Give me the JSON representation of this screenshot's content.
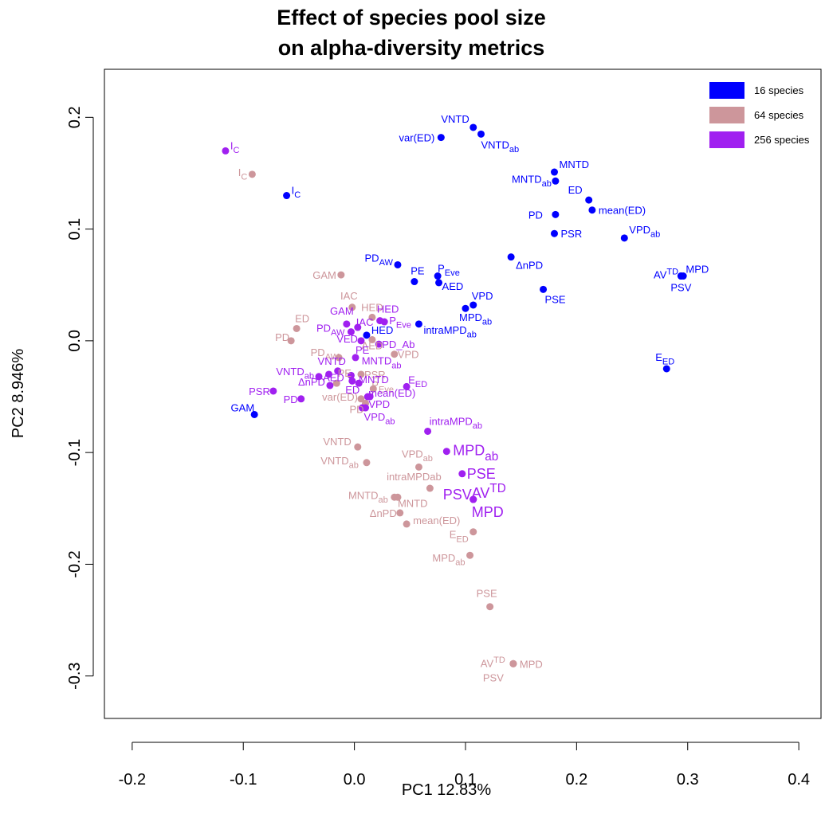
{
  "chart_data": {
    "type": "scatter",
    "title": [
      "Effect of species pool size",
      "on alpha-diversity metrics"
    ],
    "xlabel": "PC1 12.83%",
    "ylabel": "PC2 8.946%",
    "xlim": [
      -0.225,
      0.42
    ],
    "ylim": [
      -0.338,
      0.243
    ],
    "xticks": [
      -0.2,
      -0.1,
      0.0,
      0.1,
      0.2,
      0.3,
      0.4
    ],
    "xtick_labels": [
      "-0.2",
      "-0.1",
      "0.0",
      "0.1",
      "0.2",
      "0.3",
      "0.4"
    ],
    "yticks": [
      -0.3,
      -0.2,
      -0.1,
      0.0,
      0.1,
      0.2
    ],
    "ytick_labels": [
      "-0.3",
      "-0.2",
      "-0.1",
      "0.0",
      "0.1",
      "0.2"
    ],
    "grid": false,
    "legend_position": "top-right",
    "legend": [
      {
        "name": "16 species",
        "color": "#0000ff"
      },
      {
        "name": "64 species",
        "color": "#cd969b"
      },
      {
        "name": "256 species",
        "color": "#a020f0"
      }
    ],
    "series": [
      {
        "name": "16 species",
        "color": "#0000ff",
        "points": [
          {
            "x": 0.107,
            "y": 0.191,
            "label": "VNTD",
            "anchor": "end",
            "dx": -5,
            "dy": -6
          },
          {
            "x": 0.114,
            "y": 0.185,
            "label": "VNTD",
            "sub": "ab",
            "anchor": "start",
            "dx": 0,
            "dy": 18
          },
          {
            "x": 0.078,
            "y": 0.182,
            "label": "var(ED)",
            "anchor": "end",
            "dx": -8,
            "dy": 5
          },
          {
            "x": 0.18,
            "y": 0.151,
            "label": "MNTD",
            "anchor": "start",
            "dx": 6,
            "dy": -5
          },
          {
            "x": 0.181,
            "y": 0.143,
            "label": "MNTD",
            "sub": "ab",
            "anchor": "end",
            "dx": -5,
            "dy": 2
          },
          {
            "x": 0.211,
            "y": 0.126,
            "label": "ED",
            "anchor": "end",
            "dx": -8,
            "dy": -8
          },
          {
            "x": 0.214,
            "y": 0.117,
            "label": "mean(ED)",
            "anchor": "start",
            "dx": 8,
            "dy": 5
          },
          {
            "x": 0.181,
            "y": 0.113,
            "label": "PD",
            "anchor": "end",
            "dx": -16,
            "dy": 5
          },
          {
            "x": 0.18,
            "y": 0.096,
            "label": "PSR",
            "anchor": "start",
            "dx": 8,
            "dy": 5
          },
          {
            "x": 0.243,
            "y": 0.092,
            "label": "VPD",
            "sub": "ab",
            "anchor": "start",
            "dx": 6,
            "dy": -6
          },
          {
            "x": -0.061,
            "y": 0.13,
            "label": "I",
            "sub": "C",
            "anchor": "start",
            "dx": 6,
            "dy": -2
          },
          {
            "x": 0.039,
            "y": 0.068,
            "label": "PD",
            "sub": "AW",
            "anchor": "end",
            "dx": -6,
            "dy": -4
          },
          {
            "x": 0.054,
            "y": 0.053,
            "label": "PE",
            "anchor": "middle",
            "dx": 4,
            "dy": -9
          },
          {
            "x": 0.075,
            "y": 0.058,
            "label": "P",
            "sub": "Eve",
            "anchor": "start",
            "dx": 0,
            "dy": -5
          },
          {
            "x": 0.076,
            "y": 0.052,
            "label": "AED",
            "anchor": "start",
            "dx": 4,
            "dy": 9
          },
          {
            "x": 0.141,
            "y": 0.075,
            "label": "ΔnPD",
            "anchor": "start",
            "dx": 6,
            "dy": 15
          },
          {
            "x": 0.296,
            "y": 0.058,
            "label": "AV",
            "sup": "TD",
            "anchor": "end",
            "dx": -6,
            "dy": 3
          },
          {
            "x": 0.294,
            "y": 0.058,
            "label": "MPD",
            "anchor": "start",
            "dx": 6,
            "dy": -4
          },
          {
            "x": 0.294,
            "y": 0.058,
            "label": "PSV",
            "anchor": "middle",
            "dx": 0,
            "dy": 19
          },
          {
            "x": 0.17,
            "y": 0.046,
            "label": "PSE",
            "anchor": "start",
            "dx": 2,
            "dy": 17
          },
          {
            "x": 0.107,
            "y": 0.032,
            "label": "VPD",
            "anchor": "start",
            "dx": -2,
            "dy": -7
          },
          {
            "x": 0.1,
            "y": 0.029,
            "label": "MPD",
            "sub": "ab",
            "anchor": "start",
            "dx": -8,
            "dy": 16
          },
          {
            "x": 0.058,
            "y": 0.015,
            "label": "intraMPD",
            "sub": "ab",
            "anchor": "start",
            "dx": 6,
            "dy": 12
          },
          {
            "x": 0.011,
            "y": 0.005,
            "label": "HED",
            "anchor": "start",
            "dx": 6,
            "dy": -2
          },
          {
            "x": 0.281,
            "y": -0.025,
            "label": "E",
            "sub": "ED",
            "anchor": "end",
            "dx": 10,
            "dy": -10
          },
          {
            "x": -0.09,
            "y": -0.066,
            "label": "GAM",
            "anchor": "end",
            "dx": 0,
            "dy": -4
          }
        ]
      },
      {
        "name": "64 species",
        "color": "#cd969b",
        "points": [
          {
            "x": -0.092,
            "y": 0.149,
            "label": "I",
            "sub": "C",
            "anchor": "end",
            "dx": -6,
            "dy": 2
          },
          {
            "x": -0.012,
            "y": 0.059,
            "label": "GAM",
            "anchor": "end",
            "dx": -6,
            "dy": 5
          },
          {
            "x": -0.002,
            "y": 0.03,
            "label": "IAC",
            "anchor": "middle",
            "dx": -4,
            "dy": -10
          },
          {
            "x": -0.052,
            "y": 0.011,
            "label": "ED",
            "anchor": "start",
            "dx": -2,
            "dy": -8
          },
          {
            "x": -0.057,
            "y": 0.0,
            "label": "PD",
            "anchor": "end",
            "dx": -2,
            "dy": 0
          },
          {
            "x": 0.016,
            "y": 0.021,
            "label": "HED",
            "anchor": "middle",
            "dx": 0,
            "dy": -8
          },
          {
            "x": 0.016,
            "y": 0.001,
            "label": "AED",
            "anchor": "middle",
            "dx": 0,
            "dy": 12
          },
          {
            "x": 0.036,
            "y": -0.012,
            "label": "VPD",
            "anchor": "start",
            "dx": 4,
            "dy": 5
          },
          {
            "x": -0.014,
            "y": -0.015,
            "label": "PD",
            "sub": "AW",
            "anchor": "end",
            "dx": 0,
            "dy": -2
          },
          {
            "x": 0.006,
            "y": -0.03,
            "label": "PSR",
            "anchor": "start",
            "dx": 4,
            "dy": 5
          },
          {
            "x": 0.017,
            "y": -0.043,
            "label": "P",
            "sub": "Eve",
            "anchor": "start",
            "dx": -2,
            "dy": 0
          },
          {
            "x": 0.006,
            "y": -0.052,
            "label": "var(ED)",
            "anchor": "end",
            "dx": -4,
            "dy": 2
          },
          {
            "x": -0.016,
            "y": -0.038,
            "label": "PE",
            "anchor": "middle",
            "dx": 10,
            "dy": -8
          },
          {
            "x": 0.01,
            "y": -0.056,
            "label": "PD",
            "anchor": "end",
            "dx": -2,
            "dy": 12
          },
          {
            "x": 0.003,
            "y": -0.095,
            "label": "VNTD",
            "anchor": "end",
            "dx": -8,
            "dy": -2
          },
          {
            "x": 0.011,
            "y": -0.109,
            "label": "VNTD",
            "sub": "ab",
            "anchor": "end",
            "dx": -10,
            "dy": 2
          },
          {
            "x": 0.058,
            "y": -0.113,
            "label": "VPD",
            "sub": "ab",
            "anchor": "middle",
            "dx": -2,
            "dy": -12
          },
          {
            "x": 0.068,
            "y": -0.132,
            "label": "intraMPDab",
            "anchor": "middle",
            "dx": -20,
            "dy": -10
          },
          {
            "x": 0.036,
            "y": -0.14,
            "label": "MNTD",
            "sub": "ab",
            "anchor": "end",
            "dx": -8,
            "dy": 2
          },
          {
            "x": 0.039,
            "y": -0.14,
            "label": "MNTD",
            "anchor": "start",
            "dx": 0,
            "dy": 12
          },
          {
            "x": 0.041,
            "y": -0.154,
            "label": "ΔnPD",
            "anchor": "end",
            "dx": -4,
            "dy": 5
          },
          {
            "x": 0.047,
            "y": -0.164,
            "label": "mean(ED)",
            "anchor": "start",
            "dx": 8,
            "dy": 0
          },
          {
            "x": 0.107,
            "y": -0.171,
            "label": "E",
            "sub": "ED",
            "anchor": "end",
            "dx": -6,
            "dy": 8
          },
          {
            "x": 0.104,
            "y": -0.192,
            "label": "MPD",
            "sub": "ab",
            "anchor": "end",
            "dx": -6,
            "dy": 8
          },
          {
            "x": 0.122,
            "y": -0.238,
            "label": "PSE",
            "anchor": "middle",
            "dx": -4,
            "dy": -12
          },
          {
            "x": 0.143,
            "y": -0.289,
            "label": "AV",
            "sup": "TD",
            "anchor": "end",
            "dx": -10,
            "dy": 4
          },
          {
            "x": 0.143,
            "y": -0.289,
            "label": "MPD",
            "anchor": "start",
            "dx": 8,
            "dy": 5
          },
          {
            "x": 0.143,
            "y": -0.289,
            "label": "PSV",
            "anchor": "end",
            "dx": -12,
            "dy": 22
          }
        ]
      },
      {
        "name": "256 species",
        "color": "#a020f0",
        "points": [
          {
            "x": -0.116,
            "y": 0.17,
            "label": "I",
            "sub": "C",
            "anchor": "start",
            "dx": 6,
            "dy": -2
          },
          {
            "x": -0.007,
            "y": 0.015,
            "label": "GAM",
            "anchor": "middle",
            "dx": -6,
            "dy": -12
          },
          {
            "x": -0.003,
            "y": 0.008,
            "label": "PD",
            "sub": "AW",
            "anchor": "end",
            "dx": -8,
            "dy": 0
          },
          {
            "x": 0.003,
            "y": 0.012,
            "label": "IAC",
            "anchor": "start",
            "dx": -2,
            "dy": -2
          },
          {
            "x": 0.023,
            "y": 0.018,
            "label": "HED",
            "anchor": "middle",
            "dx": 10,
            "dy": -10
          },
          {
            "x": 0.027,
            "y": 0.017,
            "label": "P",
            "sub": "Eve",
            "anchor": "start",
            "dx": 6,
            "dy": 3
          },
          {
            "x": 0.006,
            "y": 0.0,
            "label": "VED",
            "anchor": "end",
            "dx": -4,
            "dy": 2
          },
          {
            "x": 0.022,
            "y": -0.003,
            "label": "PD_Ab",
            "anchor": "start",
            "dx": 4,
            "dy": 5
          },
          {
            "x": 0.001,
            "y": -0.015,
            "label": "PE",
            "anchor": "start",
            "dx": 0,
            "dy": -5
          },
          {
            "x": -0.032,
            "y": -0.032,
            "label": "VNTD",
            "sub": "ab",
            "anchor": "end",
            "dx": -6,
            "dy": -2
          },
          {
            "x": -0.023,
            "y": -0.03,
            "label": "VNTD",
            "anchor": "start",
            "dx": -14,
            "dy": -12
          },
          {
            "x": -0.015,
            "y": -0.027,
            "label": "MNTD",
            "sub": "ab",
            "anchor": "start",
            "dx": 30,
            "dy": -8
          },
          {
            "x": -0.003,
            "y": -0.031,
            "label": "",
            "anchor": "start",
            "dx": 0,
            "dy": 0
          },
          {
            "x": -0.002,
            "y": -0.036,
            "label": "AED",
            "anchor": "end",
            "dx": -10,
            "dy": 0
          },
          {
            "x": 0.004,
            "y": -0.038,
            "label": "MNTD",
            "anchor": "start",
            "dx": 0,
            "dy": 0
          },
          {
            "x": -0.022,
            "y": -0.04,
            "label": "ΔnPD",
            "anchor": "end",
            "dx": -6,
            "dy": 0
          },
          {
            "x": 0.047,
            "y": -0.041,
            "label": "E",
            "sub": "ED",
            "anchor": "start",
            "dx": 2,
            "dy": -4
          },
          {
            "x": -0.073,
            "y": -0.045,
            "label": "PSR",
            "anchor": "end",
            "dx": -4,
            "dy": 5
          },
          {
            "x": -0.048,
            "y": -0.052,
            "label": "PD",
            "anchor": "end",
            "dx": -4,
            "dy": 5
          },
          {
            "x": 0.012,
            "y": -0.05,
            "label": "ED",
            "anchor": "end",
            "dx": -10,
            "dy": -4
          },
          {
            "x": 0.014,
            "y": -0.05,
            "label": "mean(ED)",
            "anchor": "start",
            "dx": -2,
            "dy": 0
          },
          {
            "x": 0.007,
            "y": -0.06,
            "label": "VPD",
            "anchor": "start",
            "dx": 8,
            "dy": 0
          },
          {
            "x": 0.01,
            "y": -0.06,
            "label": "VPD",
            "sub": "ab",
            "anchor": "start",
            "dx": -2,
            "dy": 16
          },
          {
            "x": 0.066,
            "y": -0.081,
            "label": "intraMPD",
            "sub": "ab",
            "anchor": "start",
            "dx": 2,
            "dy": -8
          },
          {
            "x": 0.083,
            "y": -0.099,
            "label": "MPD",
            "sub": "ab",
            "anchor": "start",
            "dx": 8,
            "dy": 5,
            "big": true
          },
          {
            "x": 0.097,
            "y": -0.119,
            "label": "PSE",
            "anchor": "start",
            "dx": 6,
            "dy": 6,
            "big": true
          },
          {
            "x": 0.107,
            "y": -0.142,
            "label": "AV",
            "sup": "TD",
            "anchor": "start",
            "dx": -2,
            "dy": -2,
            "big": true
          },
          {
            "x": 0.107,
            "y": -0.142,
            "label": "PSV",
            "anchor": "end",
            "dx": -2,
            "dy": 0,
            "big": true
          },
          {
            "x": 0.107,
            "y": -0.142,
            "label": "MPD",
            "anchor": "start",
            "dx": -2,
            "dy": 22,
            "big": true
          }
        ]
      }
    ]
  }
}
